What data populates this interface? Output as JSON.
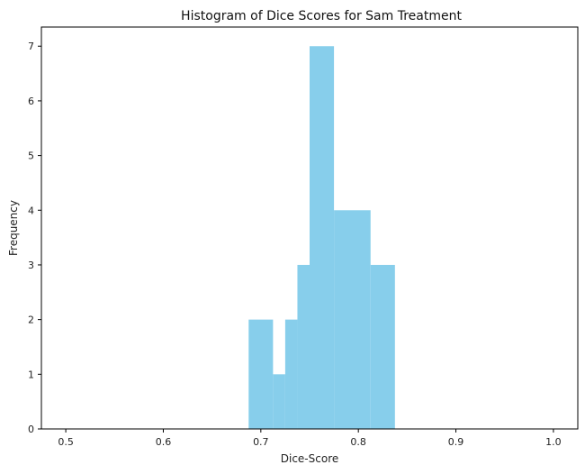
{
  "chart_data": {
    "type": "bar",
    "title": "Histogram of Dice Scores for Sam Treatment",
    "xlabel": "Dice-Score",
    "ylabel": "Frequency",
    "xlim": [
      0.475,
      1.025
    ],
    "ylim": [
      0,
      7.35
    ],
    "xticks": [
      0.5,
      0.6,
      0.7,
      0.8,
      0.9,
      1.0
    ],
    "xtick_labels": [
      "0.5",
      "0.6",
      "0.7",
      "0.8",
      "0.9",
      "1.0"
    ],
    "yticks": [
      0,
      1,
      2,
      3,
      4,
      5,
      6,
      7
    ],
    "ytick_labels": [
      "0",
      "1",
      "2",
      "3",
      "4",
      "5",
      "6",
      "7"
    ],
    "bar_color": "#87CEEB",
    "bins": [
      {
        "x0": 0.6875,
        "x1": 0.7125,
        "count": 2
      },
      {
        "x0": 0.7125,
        "x1": 0.725,
        "count": 1
      },
      {
        "x0": 0.725,
        "x1": 0.7375,
        "count": 2
      },
      {
        "x0": 0.7375,
        "x1": 0.75,
        "count": 3
      },
      {
        "x0": 0.75,
        "x1": 0.775,
        "count": 7
      },
      {
        "x0": 0.775,
        "x1": 0.8125,
        "count": 4
      },
      {
        "x0": 0.8125,
        "x1": 0.8375,
        "count": 3
      }
    ],
    "grid": false,
    "legend": "none"
  }
}
